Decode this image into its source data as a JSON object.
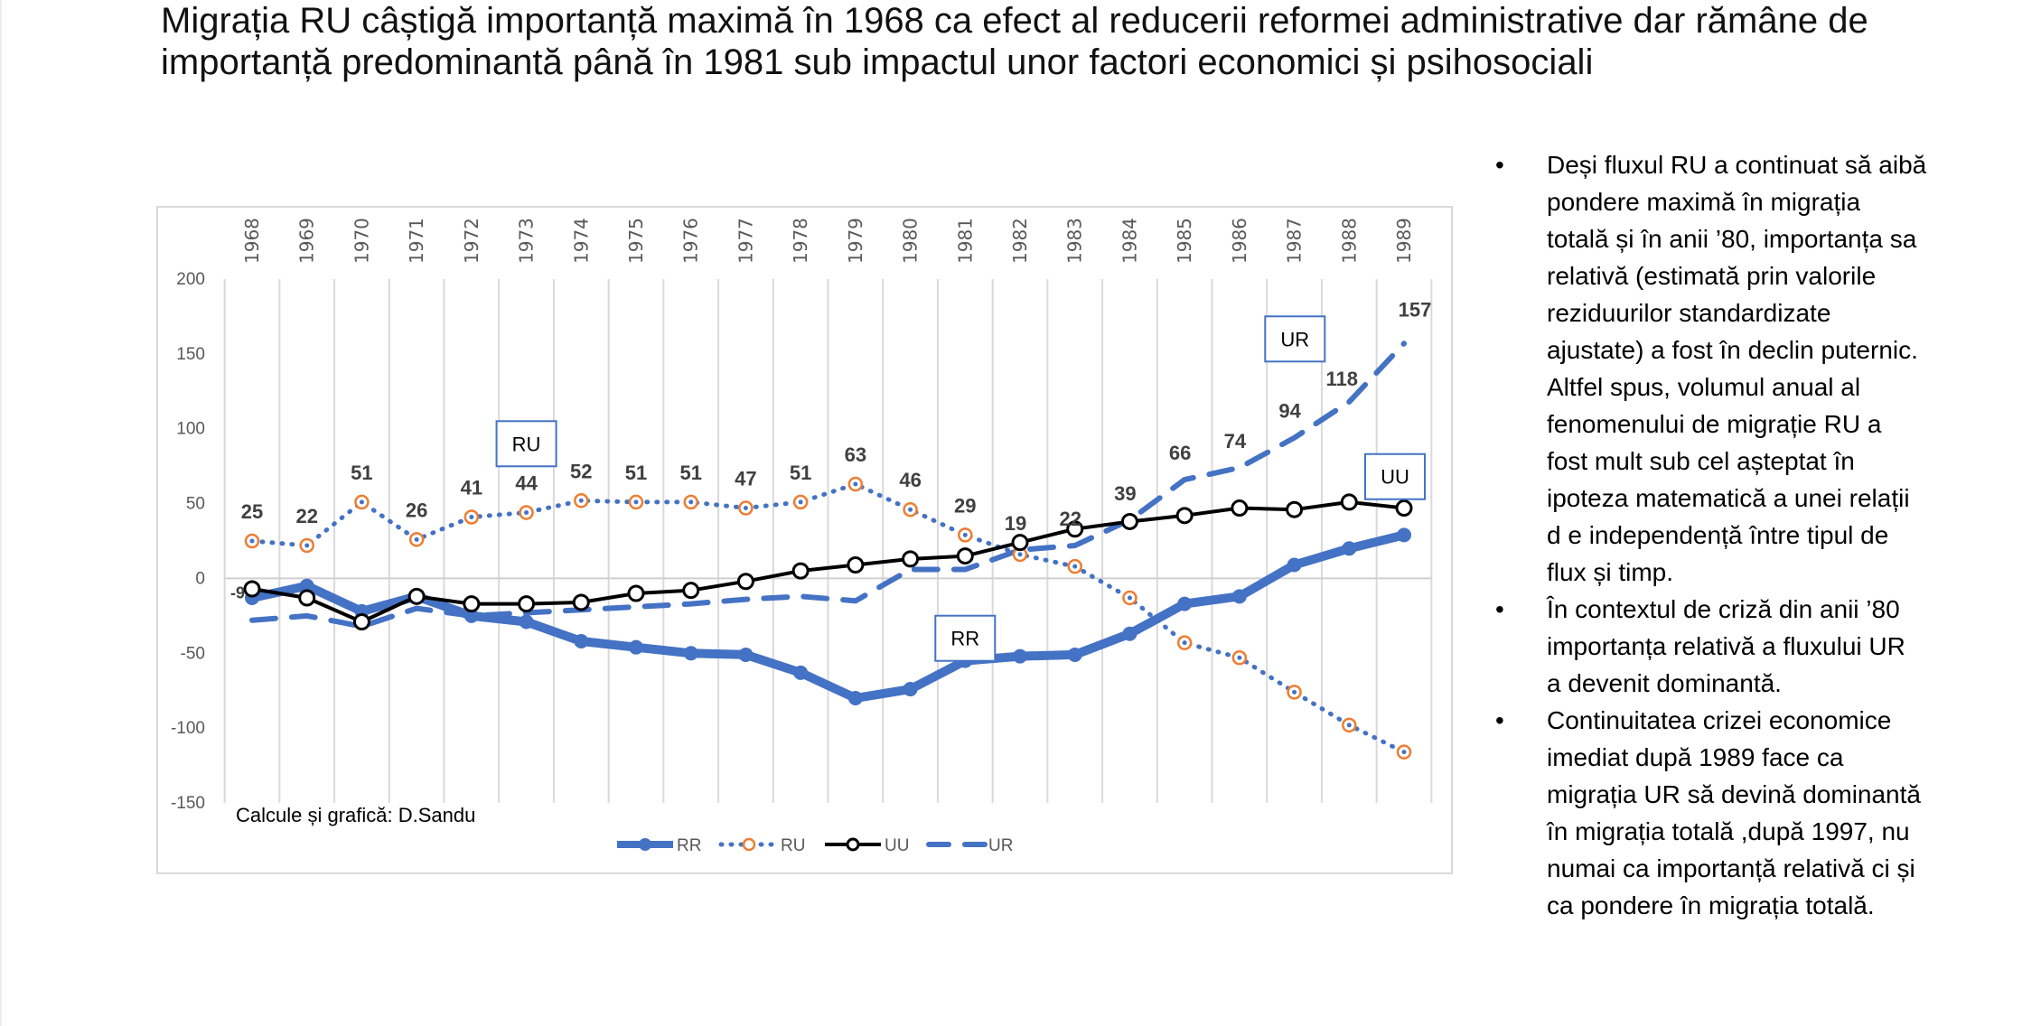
{
  "slide": {
    "title_lines": [
      "Migrația RU câștigă importanță maximă în 1968 ca efect al reducerii reformei administrative dar rămâne de",
      "importanță predominantă  până în 1981 sub impactul unor factori economici și psihosociali"
    ],
    "bullets": [
      {
        "marker": "•",
        "lines": [
          "Deși fluxul RU a continuat să aibă",
          "pondere maximă în migrația",
          "totală și în anii ’80, importanța sa",
          "relativă (estimată prin valorile",
          "reziduurilor standardizate",
          "ajustate) a fost în declin puternic.",
          "Altfel spus, volumul anual al",
          "fenomenului de migrație RU a",
          "fost mult sub cel așteptat în",
          "ipoteza matematică a unei relații",
          "d e independență între tipul de",
          "flux și timp."
        ]
      },
      {
        "marker": "•",
        "lines": [
          "În contextul de criză din anii ’80",
          "importanța relativă a fluxului UR",
          "a devenit dominantă."
        ]
      },
      {
        "marker": "•",
        "lines": [
          "Continuitatea crizei economice",
          "imediat după 1989 face ca",
          "migrația UR să devină dominantă",
          "în migrația totală ,după 1997, nu",
          "numai ca importanță relativă ci și",
          "ca pondere în migrația totală."
        ]
      }
    ]
  },
  "chart_data": {
    "type": "line",
    "title": "",
    "xlabel": "",
    "ylabel": "",
    "x": [
      "1968",
      "1969",
      "1970",
      "1971",
      "1972",
      "1973",
      "1974",
      "1975",
      "1976",
      "1977",
      "1978",
      "1979",
      "1980",
      "1981",
      "1982",
      "1983",
      "1984",
      "1985",
      "1986",
      "1987",
      "1988",
      "1989"
    ],
    "x_axis_position": "top",
    "ylim": [
      -150,
      200
    ],
    "yticks": [
      "200",
      "150",
      "100",
      "50",
      "0",
      "-50",
      "-100",
      "-150"
    ],
    "ytick_values": [
      200,
      150,
      100,
      50,
      0,
      -50,
      -100,
      -150
    ],
    "grid": "vertical",
    "legend_position": "bottom",
    "credit": "Calcule și grafică: D.Sandu",
    "series": [
      {
        "name": "RR",
        "style": "solid-thick",
        "color": "#4472c4",
        "marker": "filled-circle",
        "values": [
          -13,
          -5,
          -22,
          -12,
          -25,
          -29,
          -42,
          -46,
          -50,
          -51,
          -63,
          -80,
          -74,
          -55,
          -52,
          -51,
          -37,
          -17,
          -12,
          9,
          20,
          29
        ],
        "data_labels": []
      },
      {
        "name": "RU",
        "style": "dotted",
        "color": "#4472c4",
        "marker_color": "#ed7d31",
        "marker": "open-circle",
        "values": [
          25,
          22,
          51,
          26,
          41,
          44,
          52,
          51,
          51,
          47,
          51,
          63,
          46,
          29,
          16,
          8,
          -13,
          -43,
          -53,
          -76,
          -98,
          -116
        ],
        "data_labels": [
          "25",
          "22",
          "51",
          "26",
          "41",
          "44",
          "52",
          "51",
          "51",
          "47",
          "51",
          "63",
          "46",
          "29",
          null,
          null,
          null,
          null,
          null,
          null,
          null,
          null
        ]
      },
      {
        "name": "UU",
        "style": "solid",
        "color": "#000000",
        "marker": "open-circle",
        "values": [
          -7,
          -13,
          -29,
          -12,
          -17,
          -17,
          -16,
          -10,
          -8,
          -2,
          5,
          9,
          13,
          15,
          24,
          33,
          38,
          42,
          47,
          46,
          51,
          47
        ],
        "data_labels": []
      },
      {
        "name": "UR",
        "style": "dashed",
        "color": "#4472c4",
        "marker": "none",
        "values": [
          -28,
          -25,
          -32,
          -20,
          -25,
          -23,
          -21,
          -19,
          -17,
          -14,
          -12,
          -15,
          6,
          6,
          19,
          22,
          39,
          66,
          74,
          94,
          118,
          157
        ],
        "data_labels": [
          null,
          null,
          null,
          null,
          null,
          null,
          null,
          null,
          null,
          null,
          null,
          null,
          null,
          null,
          "19",
          "22",
          "39",
          "66",
          "74",
          "94",
          "118",
          "157"
        ]
      }
    ],
    "annotations": [
      {
        "text": "RU",
        "x": "1973",
        "y": 90,
        "boxed": true
      },
      {
        "text": "RR",
        "x": "1981",
        "y": -40,
        "boxed": true
      },
      {
        "text": "UR",
        "x": "1988",
        "y": 160,
        "boxed": true
      },
      {
        "text": "UU",
        "x": "1989",
        "y": 68,
        "boxed": true
      },
      {
        "text": "-9",
        "x": "1968",
        "y": -9,
        "boxed": false
      }
    ]
  }
}
